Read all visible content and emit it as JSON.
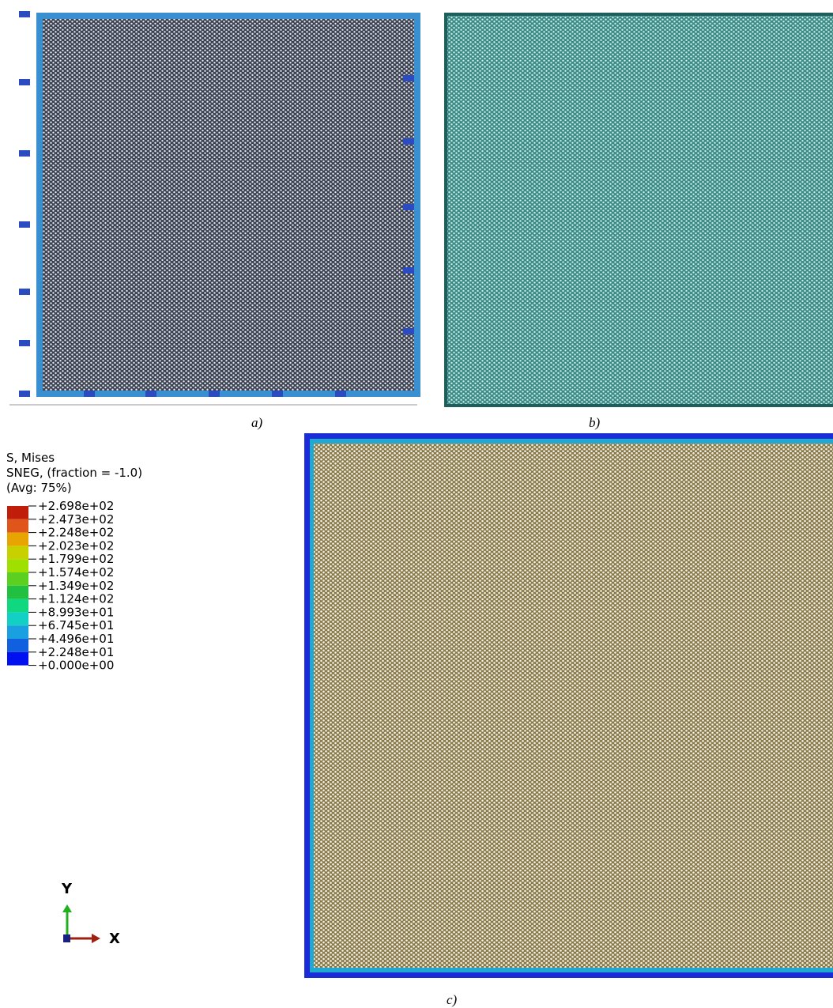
{
  "panels": [
    {
      "label": "a)"
    },
    {
      "label": "b)"
    },
    {
      "label": "c)"
    }
  ],
  "legend": {
    "title": [
      "S, Mises",
      "SNEG, (fraction = -1.0)",
      "(Avg: 75%)"
    ],
    "values": [
      "+2.698e+02",
      "+2.473e+02",
      "+2.248e+02",
      "+2.023e+02",
      "+1.799e+02",
      "+1.574e+02",
      "+1.349e+02",
      "+1.124e+02",
      "+8.993e+01",
      "+6.745e+01",
      "+4.496e+01",
      "+2.248e+01",
      "+0.000e+00"
    ],
    "colors": [
      "#c01e0a",
      "#e0561a",
      "#e8a400",
      "#c8d000",
      "#a0e000",
      "#5cd020",
      "#22c040",
      "#10d880",
      "#12d0c4",
      "#1aa0e0",
      "#1060e0",
      "#0010f0"
    ]
  },
  "triad": {
    "y": "Y",
    "x": "X"
  }
}
